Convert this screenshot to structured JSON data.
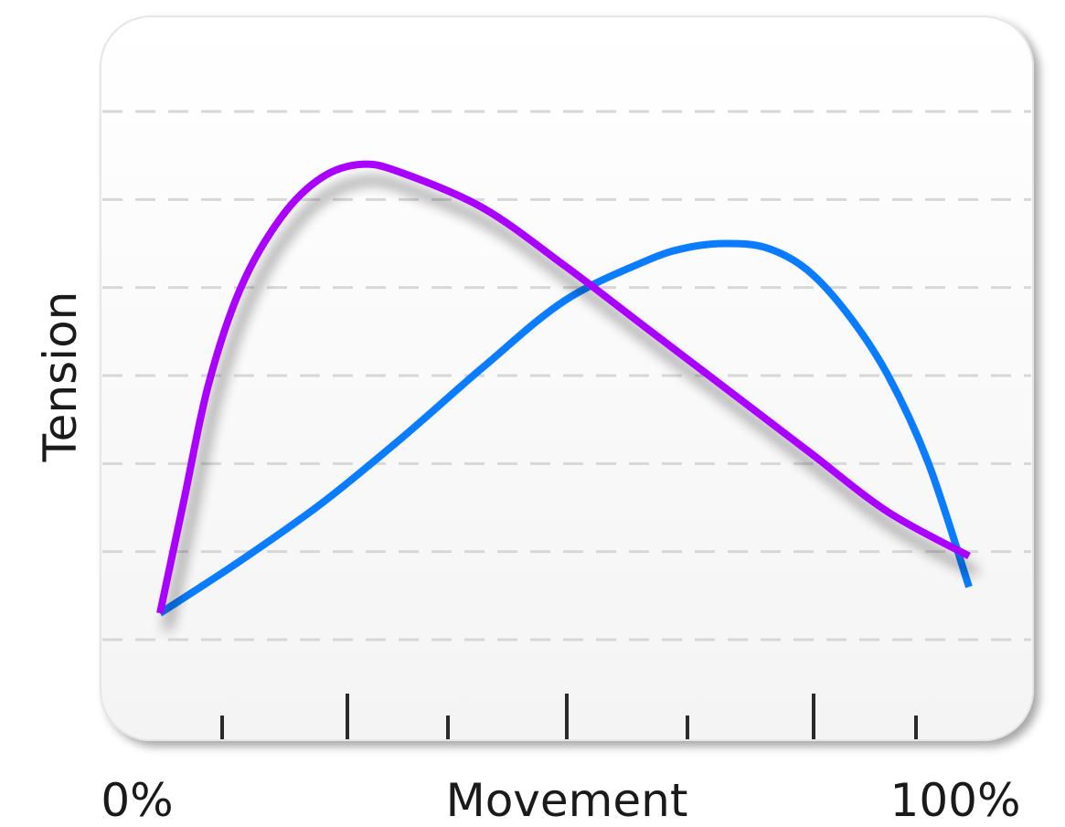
{
  "chart_data": {
    "type": "line",
    "xlabel": "Movement",
    "ylabel": "Tension",
    "x_tick_labels": [
      "0%",
      "100%"
    ],
    "xlim": [
      0,
      100
    ],
    "ylim": [
      0,
      6
    ],
    "grid": true,
    "legend": "none",
    "series": [
      {
        "color": "#aa00ff",
        "x": [
          0,
          3,
          6,
          10,
          15,
          20,
          25,
          30,
          40,
          50,
          60,
          70,
          80,
          90,
          100
        ],
        "y": [
          0.3,
          1.6,
          2.9,
          4.0,
          4.8,
          5.25,
          5.4,
          5.3,
          4.9,
          4.25,
          3.55,
          2.85,
          2.15,
          1.45,
          0.95
        ]
      },
      {
        "color": "#0a7cff",
        "x": [
          0,
          10,
          20,
          30,
          40,
          50,
          60,
          65,
          70,
          75,
          80,
          85,
          90,
          95,
          100
        ],
        "y": [
          0.3,
          0.9,
          1.55,
          2.3,
          3.1,
          3.85,
          4.3,
          4.45,
          4.5,
          4.45,
          4.2,
          3.7,
          3.0,
          2.0,
          0.6
        ]
      }
    ]
  },
  "colors": {
    "panel_background": "#fafafa",
    "grid": "#d7d7d7",
    "purple_series": "#aa00ff",
    "blue_series": "#0a7cff"
  }
}
